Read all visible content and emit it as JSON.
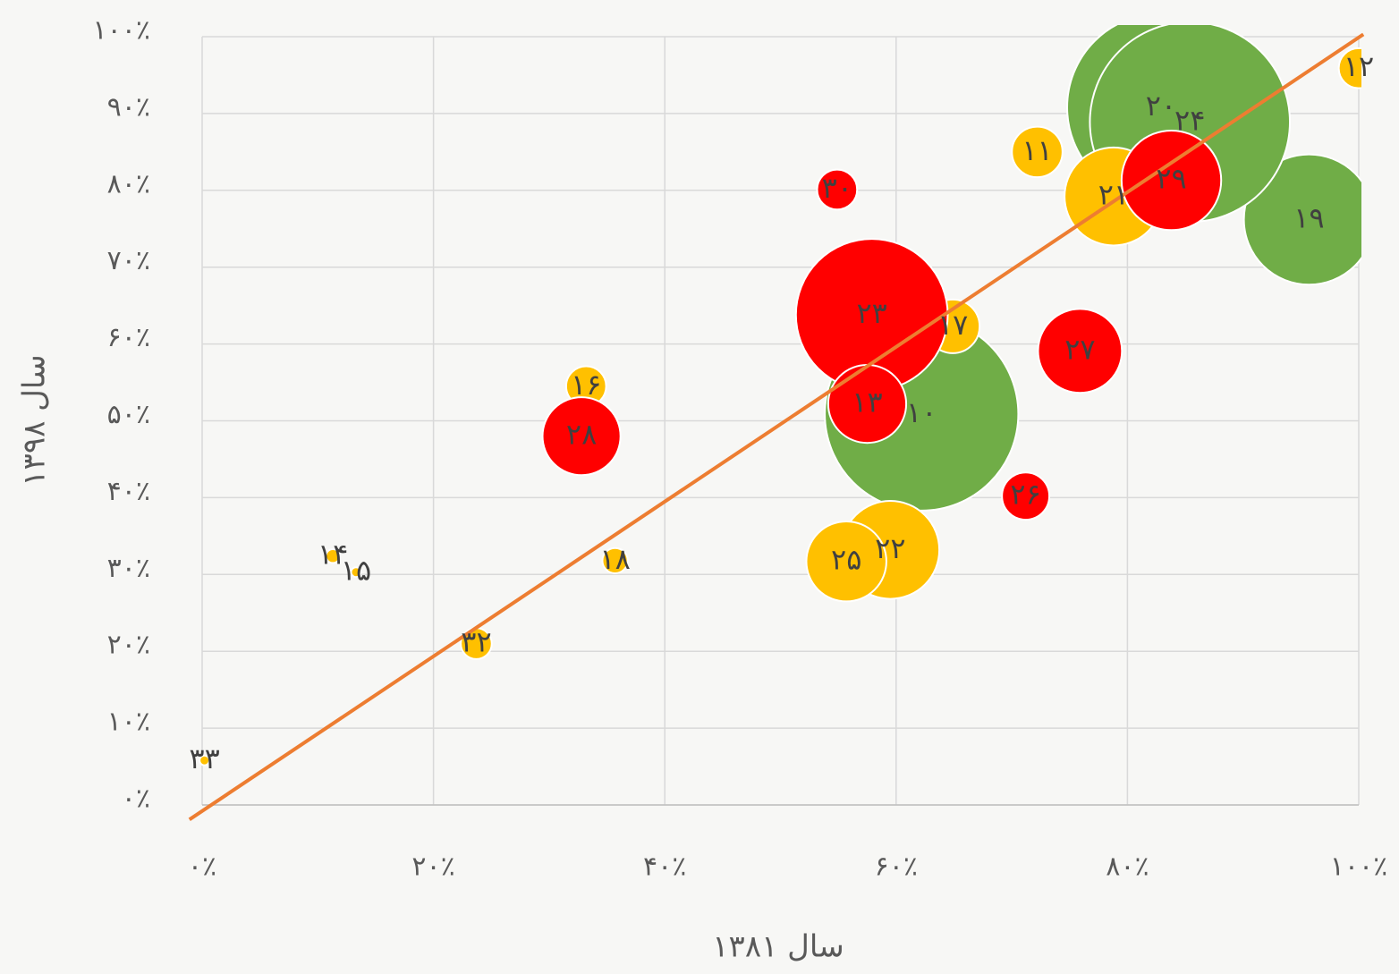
{
  "chart_data": {
    "type": "bubble",
    "xlabel": "سال ۱۳۸۱",
    "ylabel": "سال ۱۳۹۸",
    "xlim": [
      0,
      100
    ],
    "ylim": [
      0,
      100
    ],
    "xticks": [
      {
        "value": 0,
        "label": "۰٪"
      },
      {
        "value": 20,
        "label": "۲۰٪"
      },
      {
        "value": 40,
        "label": "۴۰٪"
      },
      {
        "value": 60,
        "label": "۶۰٪"
      },
      {
        "value": 80,
        "label": "۸۰٪"
      },
      {
        "value": 100,
        "label": "۱۰۰٪"
      }
    ],
    "yticks": [
      {
        "value": 0,
        "label": "۰٪"
      },
      {
        "value": 10,
        "label": "۱۰٪"
      },
      {
        "value": 20,
        "label": "۲۰٪"
      },
      {
        "value": 30,
        "label": "۳۰٪"
      },
      {
        "value": 40,
        "label": "۴۰٪"
      },
      {
        "value": 50,
        "label": "۵۰٪"
      },
      {
        "value": 60,
        "label": "۶۰٪"
      },
      {
        "value": 70,
        "label": "۷۰٪"
      },
      {
        "value": 80,
        "label": "۸۰٪"
      },
      {
        "value": 90,
        "label": "۹۰٪"
      },
      {
        "value": 100,
        "label": "۱۰۰٪"
      }
    ],
    "grid": true,
    "series": [
      {
        "color": "#70ad47",
        "labels": [
          "۱۰",
          "۱۹",
          "۲۰",
          "۲۴"
        ],
        "x": [
          62.2,
          95.7,
          82.9,
          85.4
        ],
        "values": [
          50.9,
          76.2,
          90.8,
          88.9
        ],
        "sizes": [
          117,
          53,
          110,
          125
        ]
      },
      {
        "color": "#ffc000",
        "labels": [
          "۱۲",
          "۱۱",
          "۲۱",
          "۱۷",
          "۱۶",
          "۱۸",
          "۱۴",
          "۱۵",
          "۲۲",
          "۲۵",
          "۳۲",
          "۳۳"
        ],
        "x": [
          100,
          72.2,
          78.8,
          64.9,
          33.2,
          35.7,
          11.3,
          13.3,
          59.5,
          55.7,
          23.7,
          0.2
        ],
        "values": [
          95.9,
          85.0,
          79.2,
          62.3,
          54.5,
          31.8,
          32.4,
          30.3,
          33.2,
          31.7,
          21.0,
          5.8
        ],
        "sizes": [
          5,
          8,
          30,
          9,
          5,
          2,
          0.6,
          0.3,
          30,
          20,
          3,
          0.3
        ]
      },
      {
        "color": "#ff0000",
        "labels": [
          "۲۳",
          "۱۳",
          "۳۰",
          "۲۸",
          "۲۷",
          "۲۶",
          "۲۹"
        ],
        "x": [
          57.9,
          57.5,
          54.9,
          32.8,
          75.9,
          71.2,
          83.8
        ],
        "values": [
          63.8,
          52.2,
          80.1,
          48.0,
          59.1,
          40.2,
          81.3
        ],
        "sizes": [
          72,
          19,
          5,
          19,
          22,
          7,
          31
        ]
      }
    ],
    "trendline": {
      "color": "#ed7d31",
      "x": [
        -1.1,
        100.4
      ],
      "values": [
        -1.9,
        100.3
      ]
    }
  }
}
